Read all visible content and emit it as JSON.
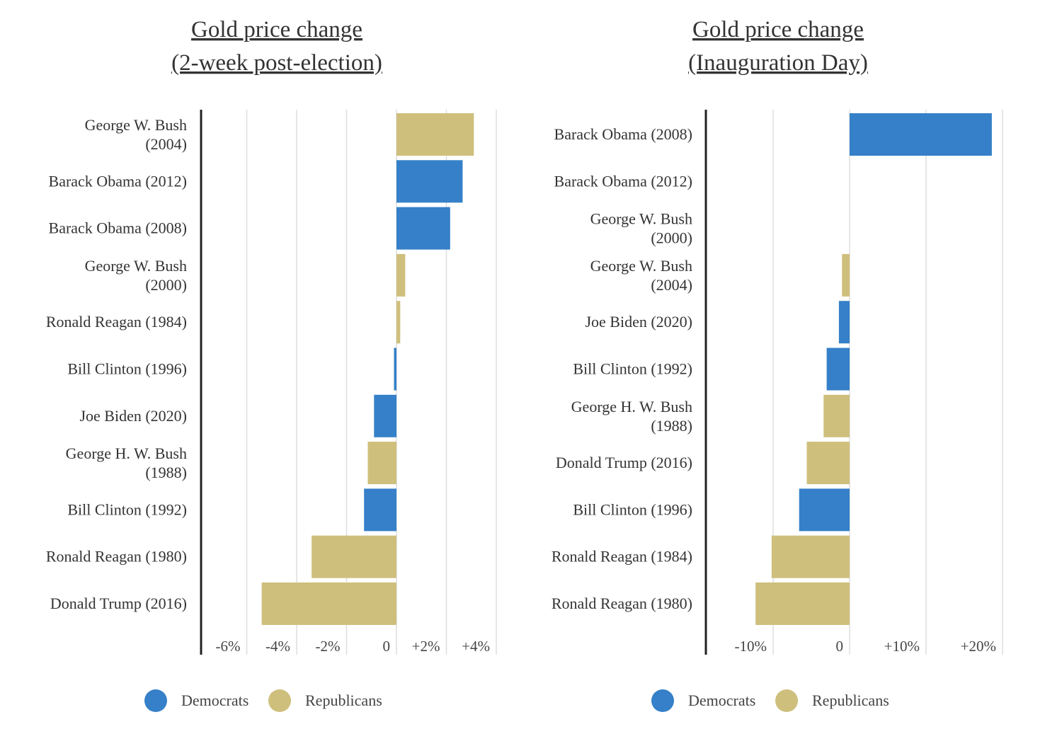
{
  "colors": {
    "Democrats": "#3580c8",
    "Republicans": "#cebf7c",
    "axis": "#222222",
    "grid": "#dddddd"
  },
  "chart_data": [
    {
      "type": "bar",
      "orientation": "horizontal",
      "title_lines": [
        "Gold price change",
        "(2-week post-election)"
      ],
      "categories": [
        "George W. Bush (2004)",
        "Barack Obama (2012)",
        "Barack Obama (2008)",
        "George W. Bush (2000)",
        "Ronald Reagan (1984)",
        "Bill Clinton (1996)",
        "Joe Biden (2020)",
        "George H. W. Bush (1988)",
        "Bill Clinton (1992)",
        "Ronald Reagan (1980)",
        "Donald Trump (2016)"
      ],
      "values": [
        3.1,
        2.65,
        2.15,
        0.35,
        0.15,
        -0.1,
        -0.9,
        -1.15,
        -1.3,
        -3.4,
        -5.4
      ],
      "party": [
        "Republicans",
        "Democrats",
        "Democrats",
        "Republicans",
        "Republicans",
        "Democrats",
        "Democrats",
        "Republicans",
        "Democrats",
        "Republicans",
        "Republicans"
      ],
      "xlim": [
        -7.9,
        4.0
      ],
      "ticks": [
        -6,
        -4,
        -2,
        0,
        2,
        4
      ],
      "tick_labels": [
        "-6%",
        "-4%",
        "-2%",
        "0",
        "+2%",
        "+4%"
      ],
      "unit": "%",
      "grid": true,
      "legend": {
        "position": "bottom",
        "entries": [
          "Democrats",
          "Republicans"
        ]
      }
    },
    {
      "type": "bar",
      "orientation": "horizontal",
      "title_lines": [
        "Gold price change ",
        "(Inauguration Day)"
      ],
      "categories": [
        "Barack Obama (2008)",
        "Barack Obama (2012)",
        "George W. Bush (2000)",
        "George W. Bush (2004)",
        "Joe Biden (2020)",
        "Bill Clinton (1992)",
        "George H. W. Bush (1988)",
        "Donald Trump (2016)",
        "Bill Clinton (1996)",
        "Ronald Reagan (1984)",
        "Ronald Reagan (1980)"
      ],
      "values": [
        18.6,
        0,
        0,
        -1.0,
        -1.4,
        -3.0,
        -3.4,
        -5.6,
        -6.6,
        -10.2,
        -12.3
      ],
      "party": [
        "Democrats",
        "Democrats",
        "Republicans",
        "Republicans",
        "Democrats",
        "Democrats",
        "Republicans",
        "Republicans",
        "Democrats",
        "Republicans",
        "Republicans"
      ],
      "xlim": [
        -18.8,
        20.0
      ],
      "ticks": [
        -10,
        0,
        10,
        20
      ],
      "tick_labels": [
        "-10%",
        "0",
        "+10%",
        "+20%"
      ],
      "unit": "%",
      "grid": true,
      "legend": {
        "position": "bottom",
        "entries": [
          "Democrats",
          "Republicans"
        ]
      }
    }
  ]
}
